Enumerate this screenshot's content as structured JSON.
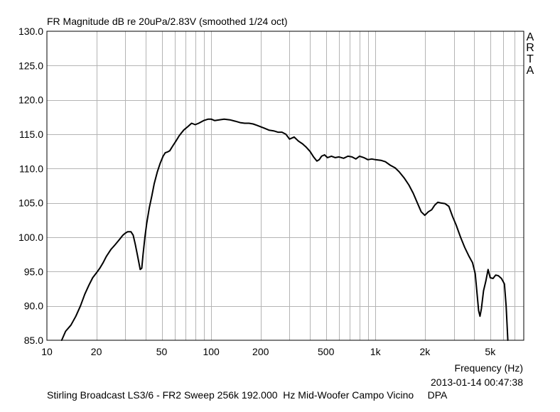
{
  "chart_data": {
    "type": "line",
    "title": "FR Magnitude dB re 20uPa/2.83V (smoothed 1/24 oct)",
    "xlabel": "Frequency (Hz)",
    "ylabel": "",
    "x_scale": "log",
    "xlim": [
      10,
      8000
    ],
    "ylim": [
      85,
      130
    ],
    "grid": true,
    "x_ticks": [
      {
        "value": 10,
        "label": "10"
      },
      {
        "value": 20,
        "label": "20"
      },
      {
        "value": 50,
        "label": "50"
      },
      {
        "value": 100,
        "label": "100"
      },
      {
        "value": 200,
        "label": "200"
      },
      {
        "value": 500,
        "label": "500"
      },
      {
        "value": 1000,
        "label": "1k"
      },
      {
        "value": 2000,
        "label": "2k"
      },
      {
        "value": 5000,
        "label": "5k"
      }
    ],
    "y_ticks": [
      {
        "value": 85,
        "label": "85.0"
      },
      {
        "value": 90,
        "label": "90.0"
      },
      {
        "value": 95,
        "label": "95.0"
      },
      {
        "value": 100,
        "label": "100.0"
      },
      {
        "value": 105,
        "label": "105.0"
      },
      {
        "value": 110,
        "label": "110.0"
      },
      {
        "value": 115,
        "label": "115.0"
      },
      {
        "value": 120,
        "label": "120.0"
      },
      {
        "value": 125,
        "label": "125.0"
      },
      {
        "value": 130,
        "label": "130.0"
      }
    ],
    "series": [
      {
        "color": "#000000",
        "points": [
          [
            12.3,
            85.0
          ],
          [
            13.0,
            86.3
          ],
          [
            14.0,
            87.2
          ],
          [
            15.0,
            88.5
          ],
          [
            16.0,
            90.0
          ],
          [
            17.0,
            91.7
          ],
          [
            18.0,
            93.0
          ],
          [
            19.0,
            94.1
          ],
          [
            20.0,
            94.8
          ],
          [
            21.0,
            95.5
          ],
          [
            22.0,
            96.3
          ],
          [
            23.0,
            97.2
          ],
          [
            24.5,
            98.2
          ],
          [
            26.0,
            98.9
          ],
          [
            27.5,
            99.6
          ],
          [
            29.0,
            100.3
          ],
          [
            30.0,
            100.6
          ],
          [
            31.0,
            100.8
          ],
          [
            32.5,
            100.8
          ],
          [
            33.5,
            100.3
          ],
          [
            34.5,
            99.0
          ],
          [
            35.5,
            97.5
          ],
          [
            36.5,
            96.0
          ],
          [
            37.0,
            95.3
          ],
          [
            37.8,
            95.5
          ],
          [
            38.5,
            97.5
          ],
          [
            39.5,
            100.0
          ],
          [
            40.5,
            102.0
          ],
          [
            42.0,
            104.3
          ],
          [
            43.5,
            106.0
          ],
          [
            45.0,
            107.8
          ],
          [
            47.0,
            109.5
          ],
          [
            49.0,
            110.8
          ],
          [
            51.0,
            111.8
          ],
          [
            52.5,
            112.3
          ],
          [
            54.0,
            112.4
          ],
          [
            56.0,
            112.6
          ],
          [
            58.0,
            113.2
          ],
          [
            61.0,
            114.0
          ],
          [
            64.0,
            114.8
          ],
          [
            68.0,
            115.6
          ],
          [
            72.0,
            116.1
          ],
          [
            76.0,
            116.6
          ],
          [
            80.0,
            116.4
          ],
          [
            84.0,
            116.6
          ],
          [
            90.0,
            117.0
          ],
          [
            96.0,
            117.2
          ],
          [
            100.0,
            117.2
          ],
          [
            105.0,
            117.0
          ],
          [
            112.0,
            117.1
          ],
          [
            120.0,
            117.2
          ],
          [
            130.0,
            117.1
          ],
          [
            140.0,
            116.9
          ],
          [
            150.0,
            116.7
          ],
          [
            160.0,
            116.6
          ],
          [
            170.0,
            116.6
          ],
          [
            180.0,
            116.5
          ],
          [
            190.0,
            116.3
          ],
          [
            200.0,
            116.1
          ],
          [
            210.0,
            115.9
          ],
          [
            225.0,
            115.6
          ],
          [
            240.0,
            115.5
          ],
          [
            255.0,
            115.3
          ],
          [
            270.0,
            115.3
          ],
          [
            285.0,
            115.0
          ],
          [
            300.0,
            114.3
          ],
          [
            320.0,
            114.6
          ],
          [
            340.0,
            114.0
          ],
          [
            360.0,
            113.6
          ],
          [
            380.0,
            113.1
          ],
          [
            400.0,
            112.5
          ],
          [
            420.0,
            111.7
          ],
          [
            440.0,
            111.1
          ],
          [
            455.0,
            111.3
          ],
          [
            470.0,
            111.8
          ],
          [
            490.0,
            112.0
          ],
          [
            510.0,
            111.6
          ],
          [
            540.0,
            111.8
          ],
          [
            570.0,
            111.6
          ],
          [
            600.0,
            111.7
          ],
          [
            640.0,
            111.5
          ],
          [
            680.0,
            111.8
          ],
          [
            720.0,
            111.7
          ],
          [
            760.0,
            111.4
          ],
          [
            800.0,
            111.8
          ],
          [
            850.0,
            111.6
          ],
          [
            900.0,
            111.3
          ],
          [
            950.0,
            111.4
          ],
          [
            1000.0,
            111.3
          ],
          [
            1080.0,
            111.2
          ],
          [
            1150.0,
            111.0
          ],
          [
            1230.0,
            110.5
          ],
          [
            1320.0,
            110.1
          ],
          [
            1400.0,
            109.5
          ],
          [
            1500.0,
            108.6
          ],
          [
            1600.0,
            107.6
          ],
          [
            1700.0,
            106.4
          ],
          [
            1800.0,
            105.0
          ],
          [
            1900.0,
            103.7
          ],
          [
            2000.0,
            103.2
          ],
          [
            2100.0,
            103.7
          ],
          [
            2200.0,
            104.0
          ],
          [
            2300.0,
            104.7
          ],
          [
            2400.0,
            105.1
          ],
          [
            2500.0,
            105.0
          ],
          [
            2650.0,
            104.9
          ],
          [
            2800.0,
            104.5
          ],
          [
            2950.0,
            103.0
          ],
          [
            3100.0,
            101.8
          ],
          [
            3300.0,
            100.0
          ],
          [
            3500.0,
            98.5
          ],
          [
            3700.0,
            97.3
          ],
          [
            3900.0,
            96.3
          ],
          [
            4050.0,
            94.7
          ],
          [
            4150.0,
            92.0
          ],
          [
            4250.0,
            89.3
          ],
          [
            4330.0,
            88.5
          ],
          [
            4420.0,
            89.6
          ],
          [
            4550.0,
            92.2
          ],
          [
            4700.0,
            93.6
          ],
          [
            4850.0,
            95.3
          ],
          [
            5000.0,
            94.1
          ],
          [
            5200.0,
            94.0
          ],
          [
            5400.0,
            94.5
          ],
          [
            5600.0,
            94.4
          ],
          [
            5850.0,
            94.0
          ],
          [
            6100.0,
            93.2
          ],
          [
            6250.0,
            90.0
          ],
          [
            6400.0,
            85.0
          ]
        ]
      }
    ]
  },
  "watermark": {
    "letters": [
      "A",
      "R",
      "T",
      "A"
    ]
  },
  "footer": {
    "timestamp": "2013-01-14  00:47:38",
    "description": "Stirling Broadcast LS3/6 - FR2 Sweep 256k 192.000  Hz Mid-Woofer Campo Vicino     DPA"
  }
}
